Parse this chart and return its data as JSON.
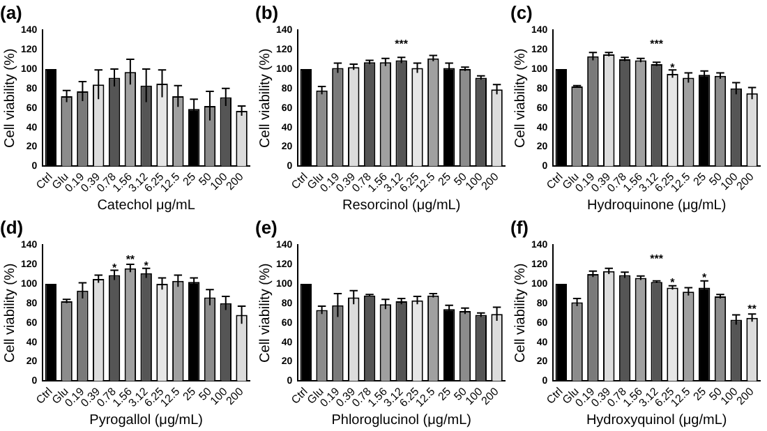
{
  "chart_data": [
    {
      "type": "bar",
      "title": "(a)",
      "xlabel": "Catechol μg/mL",
      "ylabel": "Cell viability (%)",
      "categories": [
        "Ctrl",
        "Glu",
        "0.19",
        "0.39",
        "0.78",
        "1.56",
        "3.12",
        "6.25",
        "12.5",
        "25",
        "50",
        "100",
        "200"
      ],
      "values": [
        100,
        72,
        77,
        84,
        91,
        97,
        83,
        85,
        72,
        59,
        62,
        71,
        57
      ],
      "errors": [
        null,
        6,
        10,
        15,
        9,
        13,
        17,
        14,
        11,
        10,
        15,
        9,
        5
      ],
      "colors": [
        "#000000",
        "#8c8c8c",
        "#7a7a7a",
        "#dcdcdc",
        "#555555",
        "#a0a0a0",
        "#555555",
        "#e6e6e6",
        "#a0a0a0",
        "#000000",
        "#8c8c8c",
        "#555555",
        "#dcdcdc"
      ],
      "ylim": [
        0,
        140
      ],
      "yticks": [
        0,
        20,
        40,
        60,
        80,
        100,
        120,
        140
      ],
      "legend": false
    },
    {
      "type": "bar",
      "title": "(b)",
      "xlabel": "Resorcinol (μg/mL)",
      "ylabel": "Cell viability (%)",
      "categories": [
        "Ctrl",
        "Glu",
        "0.19",
        "0.39",
        "0.78",
        "1.56",
        "3.12",
        "6.25",
        "12.5",
        "25",
        "50",
        "100",
        "200"
      ],
      "values": [
        100,
        78,
        101,
        102,
        107,
        107,
        109,
        101,
        111,
        101,
        100,
        91,
        79
      ],
      "errors": [
        null,
        4,
        5,
        3,
        2,
        4,
        3,
        5,
        3,
        5,
        2,
        2,
        5
      ],
      "colors": [
        "#000000",
        "#8c8c8c",
        "#7a7a7a",
        "#dcdcdc",
        "#555555",
        "#a0a0a0",
        "#555555",
        "#e6e6e6",
        "#a0a0a0",
        "#000000",
        "#8c8c8c",
        "#555555",
        "#dcdcdc"
      ],
      "ylim": [
        0,
        140
      ],
      "yticks": [
        0,
        20,
        40,
        60,
        80,
        100,
        120,
        140
      ],
      "legend": false,
      "annotations": [
        "***"
      ]
    },
    {
      "type": "bar",
      "title": "(c)",
      "xlabel": "Hydroquinone (μg/mL)",
      "ylabel": "Cell viability (%)",
      "categories": [
        "Ctrl",
        "Glu",
        "0.19",
        "0.39",
        "0.78",
        "1.56",
        "3.12",
        "6.25",
        "12.5",
        "25",
        "50",
        "100",
        "200"
      ],
      "values": [
        100,
        82,
        113,
        115,
        110,
        109,
        105,
        95,
        91,
        94,
        93,
        80,
        75
      ],
      "errors": [
        null,
        1,
        4,
        2,
        2,
        2,
        2,
        4,
        5,
        4,
        3,
        6,
        6
      ],
      "colors": [
        "#000000",
        "#8c8c8c",
        "#7a7a7a",
        "#dcdcdc",
        "#555555",
        "#a0a0a0",
        "#555555",
        "#e6e6e6",
        "#a0a0a0",
        "#000000",
        "#8c8c8c",
        "#555555",
        "#dcdcdc"
      ],
      "ylim": [
        0,
        140
      ],
      "yticks": [
        0,
        20,
        40,
        60,
        80,
        100,
        120,
        140
      ],
      "legend": false,
      "annotations": [
        "***",
        {
          "text": "*",
          "x": "6.25",
          "y": 101
        }
      ]
    },
    {
      "type": "bar",
      "title": "(d)",
      "xlabel": "Pyrogallol (μg/mL)",
      "ylabel": "Cell viability (%)",
      "categories": [
        "Ctrl",
        "Glu",
        "0.19",
        "0.39",
        "0.78",
        "1.56",
        "3.12",
        "6.25",
        "12.5",
        "25",
        "50",
        "100",
        "200"
      ],
      "values": [
        100,
        82,
        93,
        105,
        109,
        116,
        111,
        100,
        103,
        102,
        86,
        80,
        68
      ],
      "errors": [
        null,
        2,
        8,
        4,
        5,
        4,
        5,
        6,
        6,
        4,
        8,
        7,
        9
      ],
      "colors": [
        "#000000",
        "#8c8c8c",
        "#7a7a7a",
        "#dcdcdc",
        "#555555",
        "#a0a0a0",
        "#555555",
        "#e6e6e6",
        "#a0a0a0",
        "#000000",
        "#8c8c8c",
        "#555555",
        "#dcdcdc"
      ],
      "ylim": [
        0,
        140
      ],
      "yticks": [
        0,
        20,
        40,
        60,
        80,
        100,
        120,
        140
      ],
      "legend": false,
      "annotations": [
        {
          "text": "*",
          "x": "0.78",
          "y": 116
        },
        {
          "text": "**",
          "x": "1.56",
          "y": 125
        },
        {
          "text": "*",
          "x": "3.12",
          "y": 118
        }
      ]
    },
    {
      "type": "bar",
      "title": "(e)",
      "xlabel": "Phloroglucinol (μg/mL)",
      "ylabel": "Cell viability (%)",
      "categories": [
        "Ctrl",
        "Glu",
        "0.19",
        "0.39",
        "0.78",
        "1.56",
        "3.12",
        "6.25",
        "12.5",
        "25",
        "50",
        "100",
        "200"
      ],
      "values": [
        100,
        73,
        78,
        86,
        88,
        79,
        82,
        83,
        88,
        74,
        72,
        68,
        69
      ],
      "errors": [
        null,
        4,
        12,
        7,
        1,
        5,
        3,
        4,
        2,
        4,
        3,
        2,
        7
      ],
      "colors": [
        "#000000",
        "#8c8c8c",
        "#7a7a7a",
        "#dcdcdc",
        "#555555",
        "#a0a0a0",
        "#555555",
        "#e6e6e6",
        "#a0a0a0",
        "#000000",
        "#8c8c8c",
        "#555555",
        "#dcdcdc"
      ],
      "ylim": [
        0,
        140
      ],
      "yticks": [
        0,
        20,
        40,
        60,
        80,
        100,
        120,
        140
      ],
      "legend": false
    },
    {
      "type": "bar",
      "title": "(f)",
      "xlabel": "Hydroxyquinol (μg/mL)",
      "ylabel": "Cell viability (%)",
      "categories": [
        "Ctrl",
        "Glu",
        "0.19",
        "0.39",
        "0.78",
        "1.56",
        "3.12",
        "6.25",
        "12.5",
        "25",
        "50",
        "100",
        "200"
      ],
      "values": [
        100,
        81,
        110,
        113,
        109,
        106,
        102,
        96,
        92,
        96,
        87,
        63,
        65
      ],
      "errors": [
        null,
        4,
        3,
        3,
        3,
        2,
        1,
        2,
        4,
        7,
        2,
        5,
        4
      ],
      "colors": [
        "#000000",
        "#8c8c8c",
        "#7a7a7a",
        "#dcdcdc",
        "#555555",
        "#a0a0a0",
        "#555555",
        "#e6e6e6",
        "#a0a0a0",
        "#000000",
        "#8c8c8c",
        "#555555",
        "#dcdcdc"
      ],
      "ylim": [
        0,
        140
      ],
      "yticks": [
        0,
        20,
        40,
        60,
        80,
        100,
        120,
        140
      ],
      "legend": false,
      "annotations": [
        "***",
        {
          "text": "*",
          "x": "6.25",
          "y": 101
        },
        {
          "text": "*",
          "x": "25",
          "y": 106
        },
        {
          "text": "**",
          "x": "200",
          "y": 74
        }
      ]
    }
  ]
}
